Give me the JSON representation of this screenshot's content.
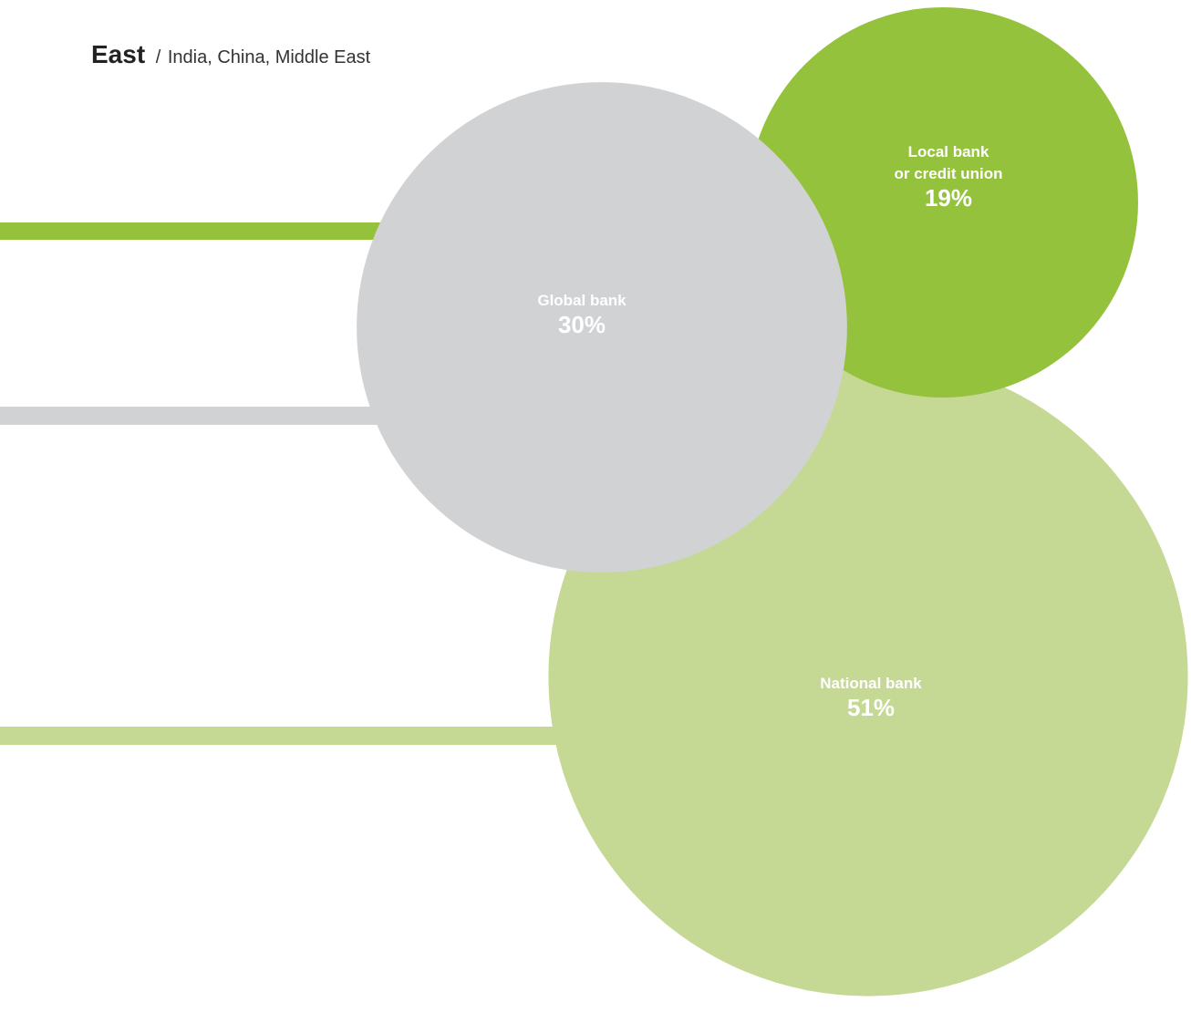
{
  "header": {
    "region": "East",
    "separator": "/",
    "subregions": "India, China, Middle East"
  },
  "colors": {
    "global": "#d1d2d4",
    "local": "#95c23d",
    "national": "#c5d994"
  },
  "chart_data": {
    "type": "bubble",
    "title": "East",
    "subtitle": "India, China, Middle East",
    "unit": "%",
    "series": [
      {
        "key": "local",
        "label_lines": [
          "Local bank",
          "or credit union"
        ],
        "value": 19
      },
      {
        "key": "global",
        "label_lines": [
          "Global bank"
        ],
        "value": 30
      },
      {
        "key": "national",
        "label_lines": [
          "National bank"
        ],
        "value": 51
      }
    ]
  }
}
